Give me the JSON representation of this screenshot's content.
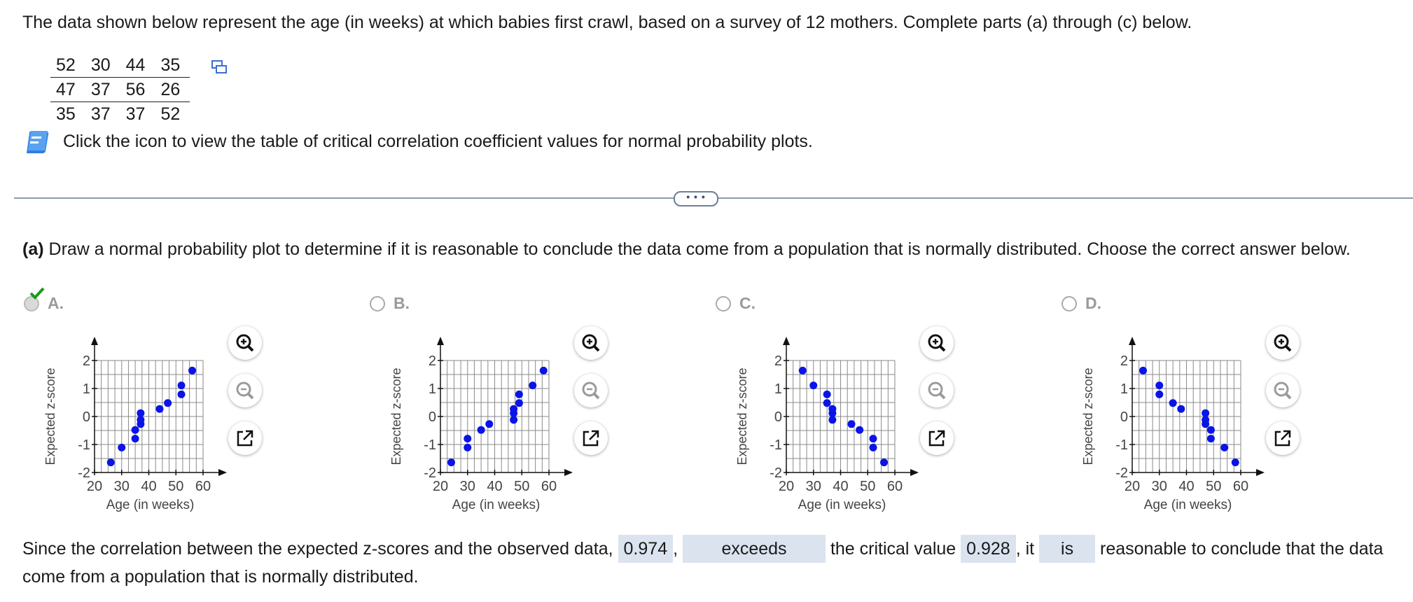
{
  "intro": "The data shown below represent the age (in weeks) at which babies first crawl, based on a survey of 12 mothers. Complete parts (a) through (c) below.",
  "data_rows": [
    [
      "52",
      "30",
      "44",
      "35"
    ],
    [
      "47",
      "37",
      "56",
      "26"
    ],
    [
      "35",
      "37",
      "37",
      "52"
    ]
  ],
  "book_link_text": "Click the icon to view the table of critical correlation coefficient values for normal probability plots.",
  "more_button": "• • •",
  "question": {
    "part": "(a)",
    "text": " Draw a normal probability plot to determine if it is reasonable to conclude the data come from a population that is normally distributed. Choose the correct answer below."
  },
  "plot_labels": {
    "xlabel": "Age (in weeks)",
    "ylabel": "Expected z-score",
    "xticks": [
      "20",
      "30",
      "40",
      "50",
      "60"
    ],
    "yticks": [
      "2",
      "1",
      "0",
      "-1",
      "-2"
    ]
  },
  "options": [
    {
      "letter": "A.",
      "selected": true
    },
    {
      "letter": "B.",
      "selected": false
    },
    {
      "letter": "C.",
      "selected": false
    },
    {
      "letter": "D.",
      "selected": false
    }
  ],
  "chart_data": [
    {
      "type": "scatter",
      "option": "A",
      "xlim": [
        20,
        60
      ],
      "ylim": [
        -2,
        2
      ],
      "xlabel": "Age (in weeks)",
      "ylabel": "Expected z-score",
      "points": [
        [
          26,
          -1.64
        ],
        [
          30,
          -1.11
        ],
        [
          35,
          -0.79
        ],
        [
          35,
          -0.48
        ],
        [
          37,
          -0.27
        ],
        [
          37,
          -0.12
        ],
        [
          37,
          0.12
        ],
        [
          44,
          0.27
        ],
        [
          47,
          0.48
        ],
        [
          52,
          0.79
        ],
        [
          52,
          1.11
        ],
        [
          56,
          1.64
        ]
      ]
    },
    {
      "type": "scatter",
      "option": "B",
      "xlim": [
        20,
        60
      ],
      "ylim": [
        -2,
        2
      ],
      "xlabel": "Age (in weeks)",
      "ylabel": "Expected z-score",
      "points": [
        [
          24,
          -1.64
        ],
        [
          30,
          -1.11
        ],
        [
          30,
          -0.79
        ],
        [
          35,
          -0.48
        ],
        [
          38,
          -0.27
        ],
        [
          47,
          -0.12
        ],
        [
          47,
          0.12
        ],
        [
          47,
          0.27
        ],
        [
          49,
          0.48
        ],
        [
          49,
          0.79
        ],
        [
          54,
          1.11
        ],
        [
          58,
          1.64
        ]
      ]
    },
    {
      "type": "scatter",
      "option": "C",
      "xlim": [
        20,
        60
      ],
      "ylim": [
        -2,
        2
      ],
      "xlabel": "Age (in weeks)",
      "ylabel": "Expected z-score",
      "points": [
        [
          26,
          1.64
        ],
        [
          30,
          1.11
        ],
        [
          35,
          0.79
        ],
        [
          35,
          0.48
        ],
        [
          37,
          0.27
        ],
        [
          37,
          0.12
        ],
        [
          37,
          -0.12
        ],
        [
          44,
          -0.27
        ],
        [
          47,
          -0.48
        ],
        [
          52,
          -0.79
        ],
        [
          52,
          -1.11
        ],
        [
          56,
          -1.64
        ]
      ]
    },
    {
      "type": "scatter",
      "option": "D",
      "xlim": [
        20,
        60
      ],
      "ylim": [
        -2,
        2
      ],
      "xlabel": "Age (in weeks)",
      "ylabel": "Expected z-score",
      "points": [
        [
          24,
          1.64
        ],
        [
          30,
          1.11
        ],
        [
          30,
          0.79
        ],
        [
          35,
          0.48
        ],
        [
          38,
          0.27
        ],
        [
          47,
          0.12
        ],
        [
          47,
          -0.12
        ],
        [
          47,
          -0.27
        ],
        [
          49,
          -0.48
        ],
        [
          49,
          -0.79
        ],
        [
          54,
          -1.11
        ],
        [
          58,
          -1.64
        ]
      ]
    }
  ],
  "answer": {
    "t1": "Since the correlation between the expected z-scores and the observed data, ",
    "corr": "0.974",
    "t2": ",",
    "compare": "exceeds",
    "t3": " the critical value ",
    "critical": "0.928",
    "t4": ", it ",
    "is_word": "is",
    "t5": " reasonable to conclude that the data come from a population that is normally distributed."
  },
  "colors": {
    "point": "#0a14e6",
    "grid": "#8a8a8a",
    "answer_box": "#dbe3ef",
    "check": "#1a9a1a",
    "divider": "#8a9bb0"
  }
}
